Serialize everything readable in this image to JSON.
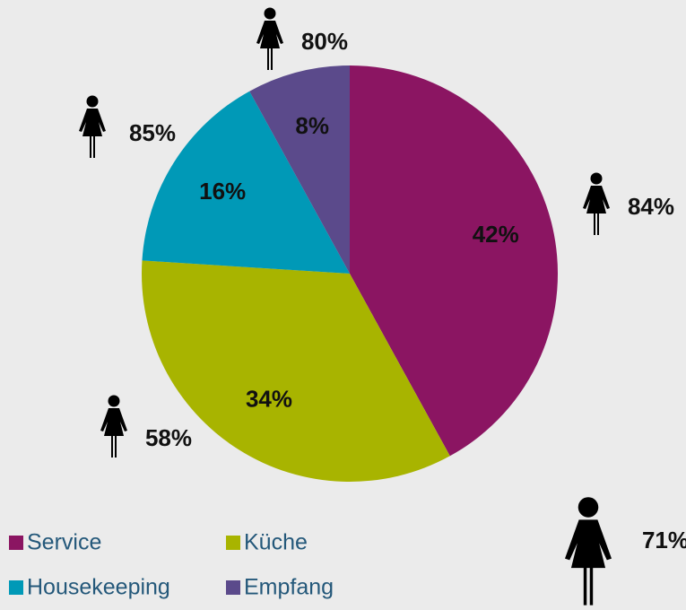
{
  "chart_data": {
    "type": "pie",
    "categories": [
      "Service",
      "Küche",
      "Housekeeping",
      "Empfang"
    ],
    "values": [
      42,
      34,
      16,
      8
    ],
    "value_labels": [
      "42%",
      "34%",
      "16%",
      "8%"
    ],
    "colors": [
      "#8b1562",
      "#a8b400",
      "#0099b7",
      "#5b4a8b"
    ],
    "legend": "bottom-left",
    "female_share": {
      "values": [
        84,
        58,
        85,
        80
      ],
      "value_labels": [
        "84%",
        "58%",
        "85%",
        "80%"
      ]
    },
    "total_female_share": {
      "value": 71,
      "label": "71%"
    }
  }
}
